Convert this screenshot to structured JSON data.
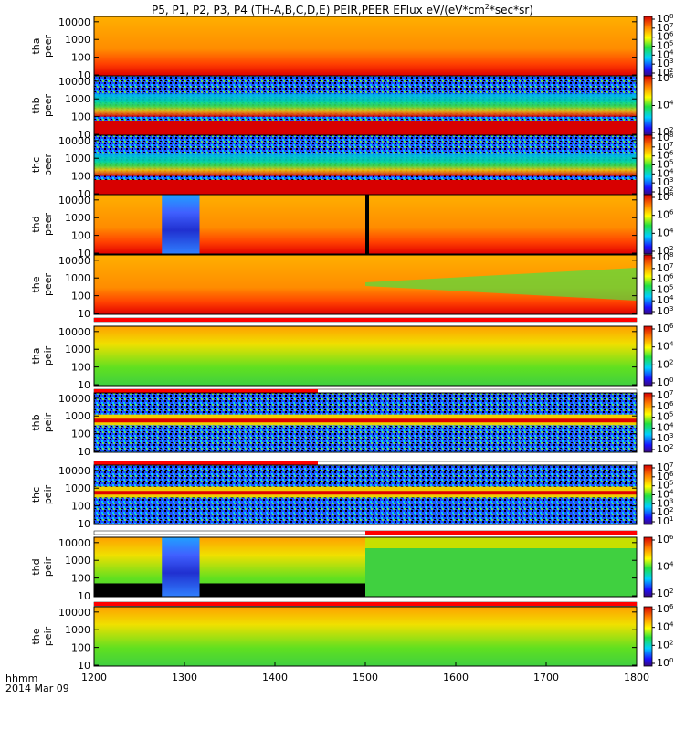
{
  "chart_data": {
    "type": "heatmap",
    "title": "P5, P1, P2, P3, P4 (TH-A,B,C,D,E) PEIR,PEER EFlux eV/(eV*cm",
    "title_sup": "2",
    "title_end": "*sec*sr)",
    "xlabel": "hhmm",
    "date_label": "2014 Mar 09",
    "x_ticks": [
      "1200",
      "1300",
      "1400",
      "1500",
      "1600",
      "1700",
      "1800"
    ],
    "x_range": [
      "1200",
      "1800"
    ],
    "y_scale": "log",
    "y_range": [
      10,
      20000
    ],
    "y_ticks": [
      "10000",
      "1000",
      "100",
      "10"
    ],
    "panels": [
      {
        "probe": "tha",
        "species": "peer",
        "cbar": [
          2,
          3,
          4,
          5,
          6,
          7,
          8
        ]
      },
      {
        "probe": "thb",
        "species": "peer",
        "cbar": [
          2,
          4,
          6
        ]
      },
      {
        "probe": "thc",
        "species": "peer",
        "cbar": [
          2,
          3,
          4,
          5,
          6,
          7,
          8
        ]
      },
      {
        "probe": "thd",
        "species": "peer",
        "cbar": [
          2,
          4,
          6,
          8
        ]
      },
      {
        "probe": "the",
        "species": "peer",
        "cbar": [
          3,
          4,
          5,
          6,
          7,
          8
        ]
      },
      {
        "probe": "tha",
        "species": "peir",
        "cbar": [
          0,
          2,
          4,
          6
        ]
      },
      {
        "probe": "thb",
        "species": "peir",
        "cbar": [
          2,
          3,
          4,
          5,
          6,
          7
        ]
      },
      {
        "probe": "thc",
        "species": "peir",
        "cbar": [
          1,
          2,
          3,
          4,
          5,
          6,
          7
        ]
      },
      {
        "probe": "thd",
        "species": "peir",
        "cbar": [
          2,
          4,
          6
        ]
      },
      {
        "probe": "the",
        "species": "peir",
        "cbar": [
          0,
          2,
          4,
          6
        ]
      }
    ]
  }
}
